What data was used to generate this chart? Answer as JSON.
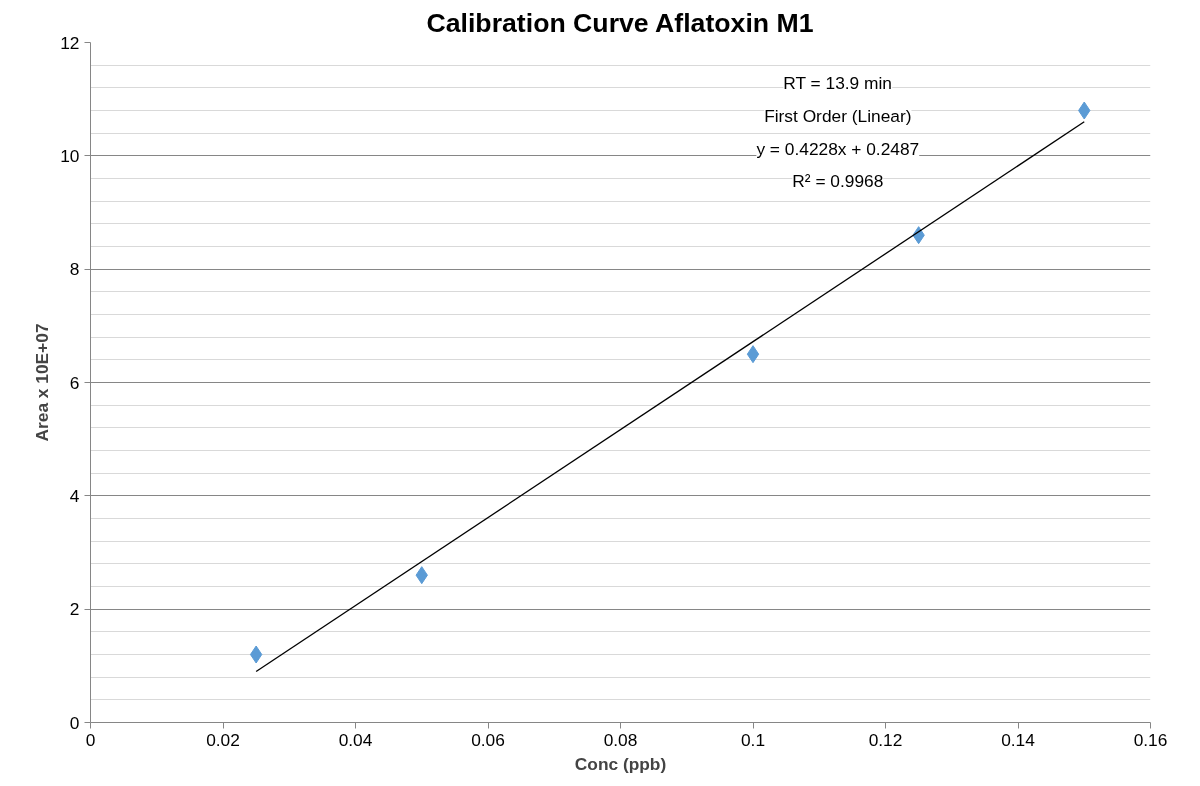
{
  "chart_data": {
    "type": "scatter",
    "title": "Calibration Curve Aflatoxin M1",
    "xlabel": "Conc (ppb)",
    "ylabel": "Area x 10E+07",
    "x": [
      0.025,
      0.05,
      0.1,
      0.125,
      0.15
    ],
    "series": [
      {
        "color": "#5b9bd5",
        "values": [
          1.2,
          2.6,
          6.5,
          8.6,
          10.8
        ],
        "marker": "diamond"
      },
      {
        "type": "line",
        "color": "#000000",
        "x": [
          0.025,
          0.15
        ],
        "values": [
          0.9,
          10.6
        ],
        "marker": "none",
        "line_style": "solid"
      }
    ],
    "annotations": [
      "RT = 13.9 min",
      "First Order (Linear)",
      "y = 0.4228x + 0.2487",
      "R² = 0.9968"
    ],
    "xlim": [
      0,
      0.16
    ],
    "xticks": [
      0,
      0.02,
      0.04,
      0.06,
      0.08,
      0.1,
      0.12,
      0.14,
      0.16
    ],
    "ylim": [
      0,
      12
    ],
    "yticks": [
      0,
      {
        "value": 0.4,
        "label": null
      },
      {
        "value": 0.8,
        "label": null
      },
      {
        "value": 1.2,
        "label": null
      },
      {
        "value": 1.6,
        "label": null
      },
      2,
      {
        "value": 2.4,
        "label": null
      },
      {
        "value": 2.8,
        "label": null
      },
      {
        "value": 3.2,
        "label": null
      },
      {
        "value": 3.6,
        "label": null
      },
      4,
      {
        "value": 4.4,
        "label": null
      },
      {
        "value": 4.8,
        "label": null
      },
      {
        "value": 5.2,
        "label": null
      },
      {
        "value": 5.6,
        "label": null
      },
      6,
      {
        "value": 6.4,
        "label": null
      },
      {
        "value": 6.8,
        "label": null
      },
      {
        "value": 7.2,
        "label": null
      },
      {
        "value": 7.6,
        "label": null
      },
      8,
      {
        "value": 8.4,
        "label": null
      },
      {
        "value": 8.8,
        "label": null
      },
      {
        "value": 9.2,
        "label": null
      },
      {
        "value": 9.6,
        "label": null
      },
      10,
      {
        "value": 10.4,
        "label": null
      },
      {
        "value": 10.8,
        "label": null
      },
      {
        "value": 11.2,
        "label": null
      },
      {
        "value": 11.6,
        "label": null
      },
      12
    ],
    "grid": "y",
    "legend": false
  }
}
